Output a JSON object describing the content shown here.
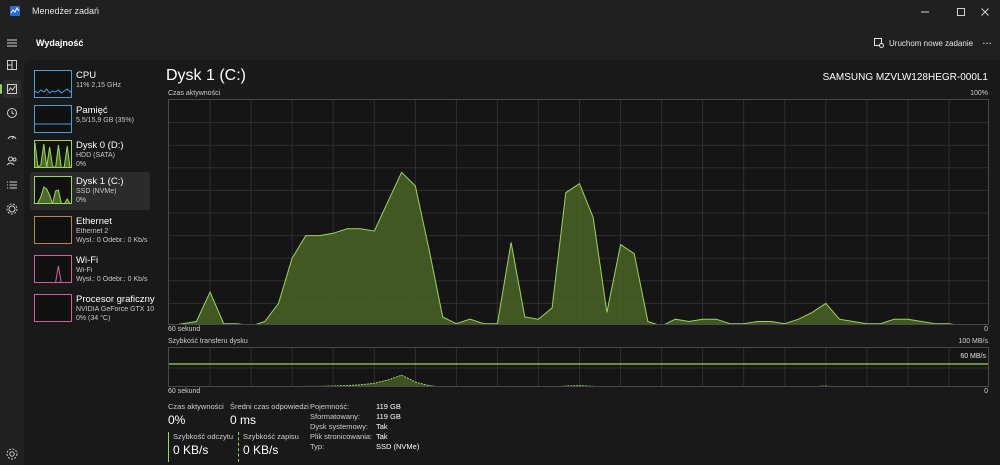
{
  "window": {
    "title": "Menedżer zadań",
    "accent": "#9bd65c"
  },
  "header": {
    "title": "Wydajność",
    "run_task_label": "Uruchom nowe zadanie",
    "more_label": "..."
  },
  "nav": [
    {
      "icon": "hamburger-icon"
    },
    {
      "icon": "processes-icon"
    },
    {
      "icon": "performance-icon",
      "active": true
    },
    {
      "icon": "app-history-icon"
    },
    {
      "icon": "startup-apps-icon"
    },
    {
      "icon": "users-icon"
    },
    {
      "icon": "details-icon"
    },
    {
      "icon": "services-icon"
    },
    {
      "icon": "settings-icon"
    }
  ],
  "devices": [
    {
      "name": "CPU",
      "sub1": "11% 2,15 GHz",
      "sub2": "",
      "color": "#4aa0d8"
    },
    {
      "name": "Pamięć",
      "sub1": "5,5/15,9 GB (35%)",
      "sub2": "",
      "color": "#4aa0d8"
    },
    {
      "name": "Dysk 0 (D:)",
      "sub1": "HDD (SATA)",
      "sub2": "0%",
      "color": "#9bd65c"
    },
    {
      "name": "Dysk 1 (C:)",
      "sub1": "SSD (NVMe)",
      "sub2": "0%",
      "color": "#9bd65c",
      "active": true
    },
    {
      "name": "Ethernet",
      "sub1": "Ethernet 2",
      "sub2": "Wysł.: 0 Odebr.: 0 Kb/s",
      "color": "#c08040"
    },
    {
      "name": "Wi-Fi",
      "sub1": "Wi-Fi",
      "sub2": "Wysł.: 0 Odebr.: 0 Kb/s",
      "color": "#d05fa0"
    },
    {
      "name": "Procesor graficzny",
      "sub1": "NVIDIA GeForce GTX 1050",
      "sub2": "0% (34 °C)",
      "color": "#d05fa0"
    }
  ],
  "main": {
    "title": "Dysk 1 (C:)",
    "model": "SAMSUNG MZVLW128HEGR-000L1",
    "active_chart": {
      "label": "Czas aktywności",
      "max_label": "100%",
      "time_label": "60 sekund",
      "min_label": "0"
    },
    "transfer_chart": {
      "label": "Szybkość transferu dysku",
      "max_label": "100 MB/s",
      "line_label": "60 MB/s",
      "time_label": "60 sekund",
      "min_label": "0"
    }
  },
  "stats": {
    "active_time": {
      "label": "Czas aktywności",
      "value": "0%"
    },
    "response_time": {
      "label": "Średni czas odpowiedzi",
      "value": "0 ms"
    },
    "read_speed": {
      "label": "Szybkość odczytu",
      "value": "0 KB/s"
    },
    "write_speed": {
      "label": "Szybkość zapisu",
      "value": "0 KB/s"
    }
  },
  "info": [
    {
      "key": "Pojemność:",
      "value": "119 GB"
    },
    {
      "key": "Sformatowany:",
      "value": "119 GB"
    },
    {
      "key": "Dysk systemowy:",
      "value": "Tak"
    },
    {
      "key": "Plik stronicowania:",
      "value": "Tak"
    },
    {
      "key": "Typ:",
      "value": "SSD (NVMe)"
    }
  ],
  "chart_data": [
    {
      "type": "area",
      "title": "Czas aktywności",
      "x": [
        0,
        1,
        2,
        3,
        4,
        5,
        6,
        7,
        8,
        9,
        10,
        11,
        12,
        13,
        14,
        15,
        16,
        17,
        18,
        19,
        20,
        21,
        22,
        23,
        24,
        25,
        26,
        27,
        28,
        29,
        30,
        31,
        32,
        33,
        34,
        35,
        36,
        37,
        38,
        39,
        40,
        41,
        42,
        43,
        44,
        45,
        46,
        47,
        48,
        49,
        50,
        51,
        52,
        53,
        54,
        55,
        56,
        57,
        58,
        59,
        60
      ],
      "values": [
        0,
        1,
        2,
        15,
        1,
        1,
        0,
        2,
        10,
        30,
        40,
        40,
        41,
        43,
        43,
        42,
        55,
        68,
        62,
        34,
        4,
        1,
        3,
        1,
        1,
        37,
        4,
        3,
        8,
        59,
        63,
        48,
        6,
        36,
        32,
        2,
        0,
        3,
        2,
        3,
        3,
        1,
        1,
        2,
        2,
        1,
        3,
        6,
        10,
        3,
        2,
        1,
        1,
        3,
        3,
        2,
        1,
        1,
        0,
        0,
        0
      ],
      "xlabel": "60 sekund",
      "ylim": [
        0,
        100
      ],
      "color": "#9bd65c",
      "grid": true
    },
    {
      "type": "line",
      "title": "Szybkość transferu dysku",
      "x": [
        0,
        1,
        2,
        3,
        4,
        5,
        6,
        7,
        8,
        9,
        10,
        11,
        12,
        13,
        14,
        15,
        16,
        17,
        18,
        19,
        20,
        21,
        22,
        23,
        24,
        25,
        26,
        27,
        28,
        29,
        30,
        31,
        32,
        33,
        34,
        35,
        36,
        37,
        38,
        39,
        40,
        41,
        42,
        43,
        44,
        45,
        46,
        47,
        48,
        49,
        50,
        51,
        52,
        53,
        54,
        55,
        56,
        57,
        58,
        59,
        60
      ],
      "values": [
        0,
        0,
        1,
        2,
        0,
        0,
        0,
        1,
        1,
        3,
        4,
        4,
        5,
        6,
        8,
        12,
        20,
        32,
        15,
        6,
        2,
        0,
        1,
        0,
        0,
        4,
        1,
        1,
        2,
        5,
        6,
        4,
        1,
        3,
        3,
        1,
        0,
        1,
        1,
        1,
        1,
        0,
        0,
        1,
        1,
        0,
        1,
        3,
        5,
        1,
        1,
        0,
        0,
        1,
        1,
        1,
        0,
        0,
        0,
        0,
        0
      ],
      "xlabel": "60 sekund",
      "ylim": [
        0,
        100
      ],
      "reference_line": 60,
      "color": "#9bd65c",
      "grid": true
    }
  ]
}
